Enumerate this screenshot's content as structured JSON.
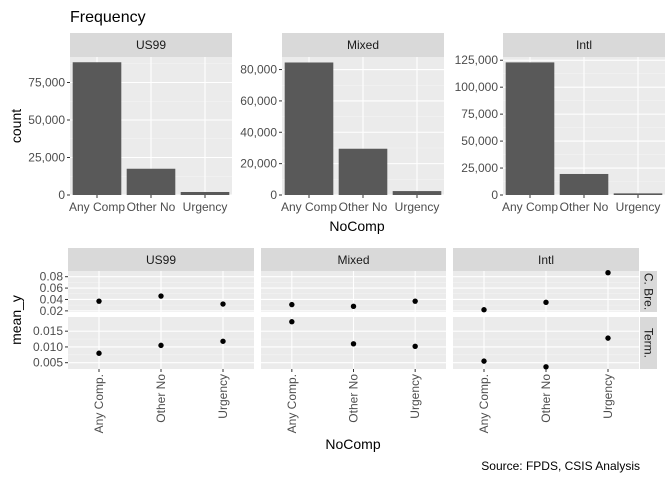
{
  "title": "Frequency",
  "caption": "Source: FPDS, CSIS Analysis",
  "chart_data": [
    {
      "type": "bar",
      "title": "Frequency",
      "xlabel": "NoComp",
      "ylabel": "count",
      "categories": [
        "Any Comp",
        "Other No",
        "Urgency"
      ],
      "grid": true,
      "facets": [
        {
          "name": "US99",
          "values": [
            88500,
            17500,
            2000
          ],
          "ylim": [
            0,
            92000
          ],
          "yticks": [
            0,
            25000,
            50000,
            75000
          ],
          "yticklabels": [
            "0",
            "25,000",
            "50,000",
            "75,000"
          ]
        },
        {
          "name": "Mixed",
          "values": [
            84500,
            29500,
            2500
          ],
          "ylim": [
            0,
            88000
          ],
          "yticks": [
            0,
            20000,
            40000,
            60000,
            80000
          ],
          "yticklabels": [
            "0",
            "20,000",
            "40,000",
            "60,000",
            "80,000"
          ]
        },
        {
          "name": "Intl",
          "values": [
            123000,
            19500,
            1500
          ],
          "ylim": [
            0,
            128000
          ],
          "yticks": [
            0,
            25000,
            50000,
            75000,
            100000,
            125000
          ],
          "yticklabels": [
            "0",
            "25,000",
            "50,000",
            "75,000",
            "100,000",
            "125,000"
          ]
        }
      ]
    },
    {
      "type": "scatter",
      "xlabel": "NoComp",
      "ylabel": "mean_y",
      "categories": [
        "Any Comp.",
        "Other No",
        "Urgency"
      ],
      "columns": [
        "US99",
        "Mixed",
        "Intl"
      ],
      "rows": [
        {
          "name": "C. Bre.",
          "ylim": [
            0.018,
            0.09
          ],
          "yticks": [
            0.02,
            0.04,
            0.06,
            0.08
          ],
          "yticklabels": [
            "0.02",
            "0.04",
            "0.06",
            "0.08"
          ],
          "values": {
            "US99": [
              0.037,
              0.046,
              0.032
            ],
            "Mixed": [
              0.031,
              0.028,
              0.037
            ],
            "Intl": [
              0.022,
              0.035,
              0.087
            ]
          }
        },
        {
          "name": "Term.",
          "ylim": [
            0.003,
            0.0195
          ],
          "yticks": [
            0.005,
            0.01,
            0.015
          ],
          "yticklabels": [
            "0.005",
            "0.010",
            "0.015"
          ],
          "values": {
            "US99": [
              0.008,
              0.0105,
              0.0118
            ],
            "Mixed": [
              0.018,
              0.011,
              0.0102
            ],
            "Intl": [
              0.0055,
              0.0037,
              0.0128
            ]
          }
        }
      ]
    }
  ]
}
